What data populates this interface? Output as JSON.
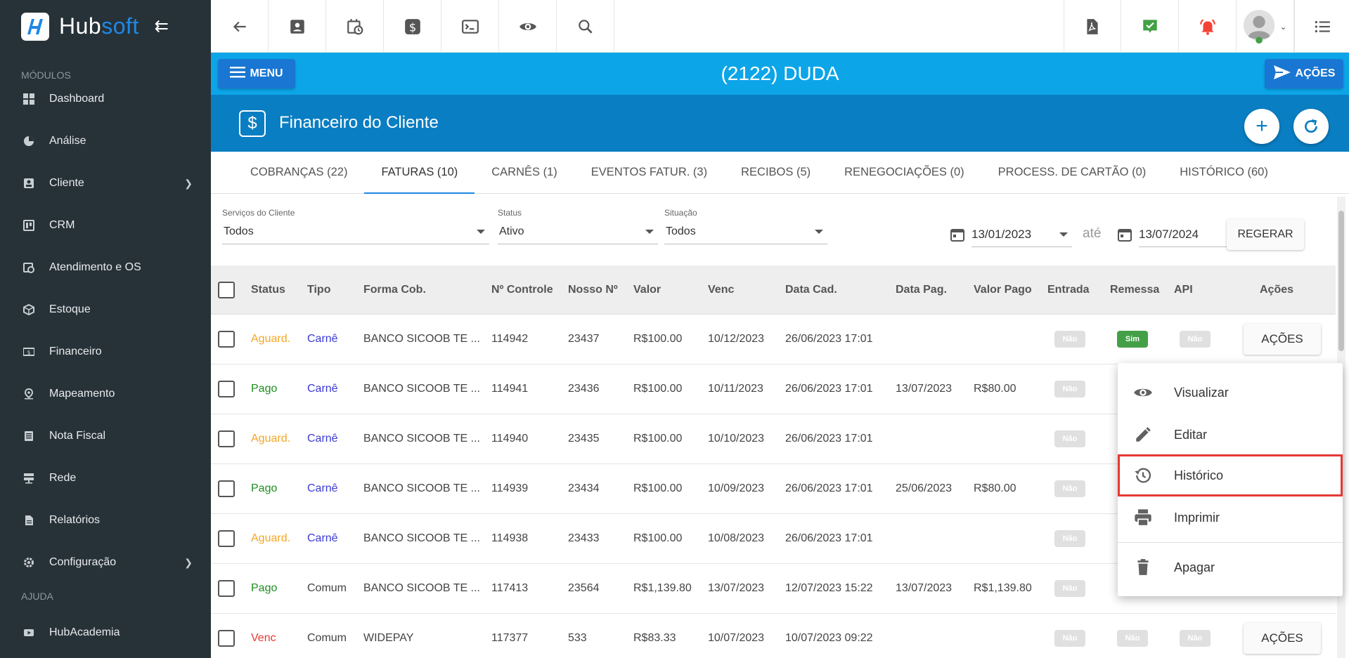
{
  "sidebar": {
    "brand": {
      "hub": "Hub",
      "soft": "soft"
    },
    "section_modules": "MÓDULOS",
    "section_help": "AJUDA",
    "items": [
      {
        "label": "Dashboard",
        "icon": "dashboard-icon"
      },
      {
        "label": "Análise",
        "icon": "pie-chart-icon"
      },
      {
        "label": "Cliente",
        "icon": "contact-card-icon",
        "has_submenu": true
      },
      {
        "label": "CRM",
        "icon": "crm-board-icon"
      },
      {
        "label": "Atendimento e OS",
        "icon": "calendar-clock-icon"
      },
      {
        "label": "Estoque",
        "icon": "box-icon"
      },
      {
        "label": "Financeiro",
        "icon": "money-icon"
      },
      {
        "label": "Mapeamento",
        "icon": "map-pin-icon"
      },
      {
        "label": "Nota Fiscal",
        "icon": "document-icon"
      },
      {
        "label": "Rede",
        "icon": "network-icon"
      },
      {
        "label": "Relatórios",
        "icon": "report-icon"
      },
      {
        "label": "Configuração",
        "icon": "gear-icon",
        "has_submenu": true
      }
    ],
    "help_items": [
      {
        "label": "HubAcademia",
        "icon": "video-icon"
      }
    ]
  },
  "topbar": {
    "icons": [
      "back-arrow-icon",
      "contact-card-icon",
      "calendar-clock-icon",
      "dollar-icon",
      "terminal-icon",
      "eye-icon",
      "search-icon",
      "pdf-icon",
      "check-badge-icon",
      "alarm-bell-icon",
      "user-avatar-icon",
      "list-menu-icon"
    ]
  },
  "client_bar": {
    "menu_label": "MENU",
    "title": "(2122) DUDA",
    "acoes_label": "AÇÕES"
  },
  "section": {
    "title": "Financeiro do Cliente"
  },
  "tabs": [
    {
      "label": "COBRANÇAS (22)",
      "active": false
    },
    {
      "label": "FATURAS (10)",
      "active": true
    },
    {
      "label": "CARNÊS (1)",
      "active": false
    },
    {
      "label": "EVENTOS FATUR. (3)",
      "active": false
    },
    {
      "label": "RECIBOS (5)",
      "active": false
    },
    {
      "label": "RENEGOCIAÇÕES (0)",
      "active": false
    },
    {
      "label": "PROCESS. DE CARTÃO (0)",
      "active": false
    },
    {
      "label": "HISTÓRICO (60)",
      "active": false
    }
  ],
  "filters": {
    "servicos": {
      "label": "Serviços do Cliente",
      "value": "Todos"
    },
    "status": {
      "label": "Status",
      "value": "Ativo"
    },
    "situacao": {
      "label": "Situação",
      "value": "Todos"
    },
    "date_from": "13/01/2023",
    "date_sep": "até",
    "date_to": "13/07/2024",
    "regerar_label": "REGERAR"
  },
  "table": {
    "headers": [
      "Status",
      "Tipo",
      "Forma Cob.",
      "Nº Controle",
      "Nosso Nº",
      "Valor",
      "Venc",
      "Data Cad.",
      "Data Pag.",
      "Valor Pago",
      "Entrada",
      "Remessa",
      "API",
      "Ações"
    ],
    "action_label": "AÇÕES",
    "rows": [
      {
        "status": "Aguard.",
        "status_class": "aguard",
        "tipo": "Carnê",
        "forma": "BANCO SICOOB TE ...",
        "controle": "114942",
        "nosso": "23437",
        "valor": "R$100.00",
        "venc": "10/12/2023",
        "cad": "26/06/2023 17:01",
        "pag": "",
        "pago": "",
        "entrada": "Não",
        "remessa": "Sim",
        "api": "Não"
      },
      {
        "status": "Pago",
        "status_class": "pago",
        "tipo": "Carnê",
        "forma": "BANCO SICOOB TE ...",
        "controle": "114941",
        "nosso": "23436",
        "valor": "R$100.00",
        "venc": "10/11/2023",
        "cad": "26/06/2023 17:01",
        "pag": "13/07/2023",
        "pago": "R$80.00",
        "entrada": "Não",
        "remessa": "",
        "api": ""
      },
      {
        "status": "Aguard.",
        "status_class": "aguard",
        "tipo": "Carnê",
        "forma": "BANCO SICOOB TE ...",
        "controle": "114940",
        "nosso": "23435",
        "valor": "R$100.00",
        "venc": "10/10/2023",
        "cad": "26/06/2023 17:01",
        "pag": "",
        "pago": "",
        "entrada": "Não",
        "remessa": "",
        "api": ""
      },
      {
        "status": "Pago",
        "status_class": "pago",
        "tipo": "Carnê",
        "forma": "BANCO SICOOB TE ...",
        "controle": "114939",
        "nosso": "23434",
        "valor": "R$100.00",
        "venc": "10/09/2023",
        "cad": "26/06/2023 17:01",
        "pag": "25/06/2023",
        "pago": "R$80.00",
        "entrada": "Não",
        "remessa": "",
        "api": ""
      },
      {
        "status": "Aguard.",
        "status_class": "aguard",
        "tipo": "Carnê",
        "forma": "BANCO SICOOB TE ...",
        "controle": "114938",
        "nosso": "23433",
        "valor": "R$100.00",
        "venc": "10/08/2023",
        "cad": "26/06/2023 17:01",
        "pag": "",
        "pago": "",
        "entrada": "Não",
        "remessa": "",
        "api": ""
      },
      {
        "status": "Pago",
        "status_class": "pago",
        "tipo": "Comum",
        "forma": "BANCO SICOOB TE ...",
        "controle": "117413",
        "nosso": "23564",
        "valor": "R$1,139.80",
        "venc": "13/07/2023",
        "cad": "12/07/2023 15:22",
        "pag": "13/07/2023",
        "pago": "R$1,139.80",
        "entrada": "Não",
        "remessa": "",
        "api": ""
      },
      {
        "status": "Venc",
        "status_class": "venc",
        "tipo": "Comum",
        "forma": "WIDEPAY",
        "controle": "117377",
        "nosso": "533",
        "valor": "R$83.33",
        "venc": "10/07/2023",
        "cad": "10/07/2023 09:22",
        "pag": "",
        "pago": "",
        "entrada": "Não",
        "remessa": "Não",
        "api": "Não"
      }
    ]
  },
  "dropdown": {
    "items": [
      {
        "label": "Visualizar",
        "icon": "eye-icon"
      },
      {
        "label": "Editar",
        "icon": "pencil-icon"
      },
      {
        "label": "Histórico",
        "icon": "history-icon",
        "highlighted": true
      },
      {
        "label": "Imprimir",
        "icon": "printer-icon"
      },
      {
        "label": "Apagar",
        "icon": "trash-icon"
      }
    ]
  },
  "colors": {
    "sidebar_bg": "#273238",
    "client_bar": "#0ca5e8",
    "section_bar": "#0a7ec2",
    "primary_button": "#1976d2",
    "status_aguard": "#f5a623",
    "status_pago": "#1e8e1e",
    "status_venc": "#e53935",
    "highlight_outline": "#e53935"
  }
}
